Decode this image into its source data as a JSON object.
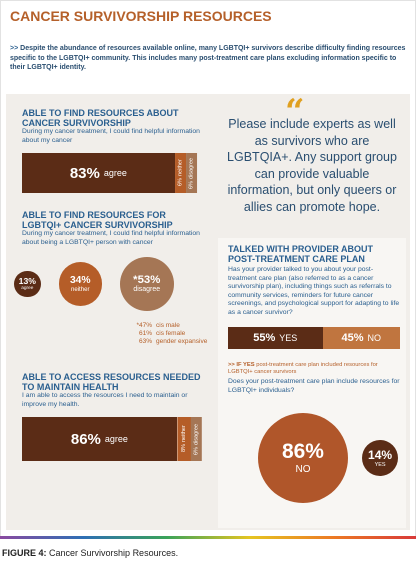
{
  "header": {
    "title": "CANCER SURVIVORSHIP RESOURCES",
    "intro_marker": ">>",
    "intro": "Despite the abundance of resources available online, many LGBTQI+ survivors describe difficulty finding resources specific to the LGBTQI+ community. This includes many post-treatment care plans excluding information specific to their LGBTQI+ identity."
  },
  "left": [
    {
      "title": "ABLE TO FIND RESOURCES ABOUT CANCER SURVIVORSHIP",
      "text": "During my cancer treatment, I could find helpful information about my cancer",
      "bar": [
        {
          "value": 83,
          "label": "83%",
          "category": "agree",
          "color": "#5b2c16"
        },
        {
          "value": 6,
          "label": "6%",
          "category": "neither",
          "color": "#b55d28"
        },
        {
          "value": 6,
          "label": "6%",
          "category": "disagree",
          "color": "#a57655"
        }
      ]
    },
    {
      "title": "ABLE TO FIND RESOURCES FOR LGBTQI+ CANCER SURVIVORSHIP",
      "text": "During my cancer treatment, I could find helpful information about being a LGBTQI+ person with cancer",
      "circles": [
        {
          "value": 13,
          "label": "13%",
          "category": "agree",
          "color": "#5b2c16"
        },
        {
          "value": 34,
          "label": "34%",
          "category": "neither",
          "color": "#b55d28"
        },
        {
          "value": 53,
          "label": "*53%",
          "category": "disagree",
          "color": "#a57655"
        }
      ],
      "footnote": [
        {
          "label": "*47%",
          "group": "cis male"
        },
        {
          "label": "61%",
          "group": "cis female"
        },
        {
          "label": "63%",
          "group": "gender expansive"
        }
      ]
    },
    {
      "title": "ABLE TO ACCESS RESOURCES NEEDED TO MAINTAIN HEALTH",
      "text": "I am able to access the resources I need to maintain or improve my health.",
      "bar": [
        {
          "value": 86,
          "label": "86%",
          "category": "agree",
          "color": "#5b2c16"
        },
        {
          "value": 8,
          "label": "8%",
          "category": "neither",
          "color": "#b55d28"
        },
        {
          "value": 6,
          "label": "6%",
          "category": "disagree",
          "color": "#a57655"
        }
      ]
    }
  ],
  "quote": {
    "mark": "“",
    "text": "Please include experts as well as survivors who are LGBTQIA+. Any support group can provide valuable information, but only queers or allies can promote hope."
  },
  "provider": {
    "title": "TALKED WITH PROVIDER ABOUT POST-TREATMENT CARE PLAN",
    "text": "Has your provider talked to you about your post-treatment care plan (also referred to as a cancer survivorship plan), including things such as referrals to community services, reminders for future cancer screenings, and psychological support for adapting to life as a cancer survivor?",
    "bar": [
      {
        "value": 55,
        "label": "55%",
        "category": "YES",
        "color": "#5b2c16"
      },
      {
        "value": 45,
        "label": "45%",
        "category": "NO",
        "color": "#c0753f"
      }
    ],
    "followup_marker": ">> IF YES",
    "followup": "post-treatment care plan included resources for LGBTQI+ cancer survivors",
    "question": "Does your post-treatment care plan include resources for LGBTQI+ individuals?",
    "circles": [
      {
        "value": 86,
        "label": "86%",
        "category": "NO",
        "color": "#b0562a"
      },
      {
        "value": 14,
        "label": "14%",
        "category": "YES",
        "color": "#5b2c16"
      }
    ]
  },
  "caption": {
    "label": "FIGURE 4:",
    "text": "Cancer Survivorship Resources."
  }
}
